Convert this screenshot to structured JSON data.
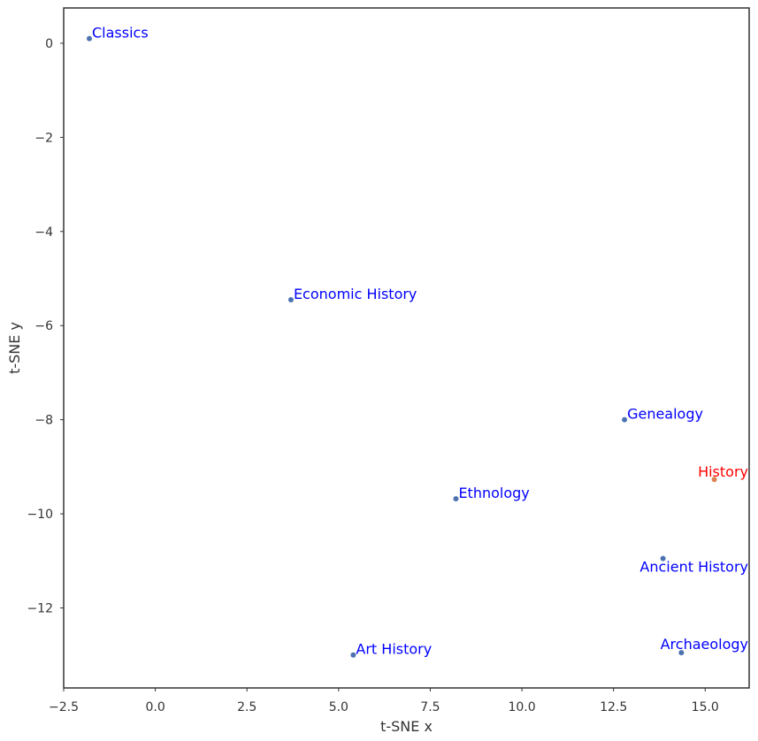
{
  "chart_data": {
    "type": "scatter",
    "title": "",
    "xlabel": "t-SNE x",
    "ylabel": "t-SNE y",
    "xlim": [
      -2.5,
      16.2
    ],
    "ylim": [
      -13.7,
      0.75
    ],
    "xticks": [
      -2.5,
      0.0,
      2.5,
      5.0,
      7.5,
      10.0,
      12.5,
      15.0
    ],
    "yticks": [
      0,
      -2,
      -4,
      -6,
      -8,
      -10,
      -12
    ],
    "xtick_labels": [
      "−2.5",
      "0.0",
      "2.5",
      "5.0",
      "7.5",
      "10.0",
      "12.5",
      "15.0"
    ],
    "ytick_labels": [
      "0",
      "−2",
      "−4",
      "−6",
      "−8",
      "−10",
      "−12"
    ],
    "grid": false,
    "colors": {
      "point": "#4c72b0",
      "highlight_point": "#dd8452",
      "label": "#0000ff",
      "highlight_label": "#ff0000",
      "frame": "#333333"
    },
    "points": [
      {
        "label": "Classics",
        "x": -1.8,
        "y": 0.1,
        "highlight": false
      },
      {
        "label": "Economic History",
        "x": 3.7,
        "y": -5.45,
        "highlight": false
      },
      {
        "label": "Genealogy",
        "x": 12.8,
        "y": -8.0,
        "highlight": false
      },
      {
        "label": "History",
        "x": 15.25,
        "y": -9.27,
        "highlight": true
      },
      {
        "label": "Ethnology",
        "x": 8.2,
        "y": -9.68,
        "highlight": false
      },
      {
        "label": "Ancient History",
        "x": 13.85,
        "y": -10.95,
        "highlight": false
      },
      {
        "label": "Art History",
        "x": 5.4,
        "y": -13.0,
        "highlight": false
      },
      {
        "label": "Archaeology",
        "x": 14.35,
        "y": -12.95,
        "highlight": false
      }
    ]
  }
}
